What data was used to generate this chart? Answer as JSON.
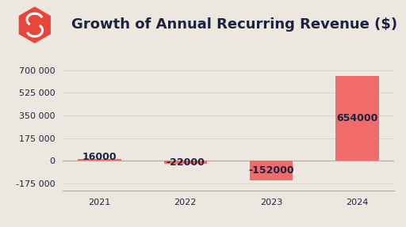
{
  "title": "Growth of Annual Recurring Revenue ($)",
  "categories": [
    "2021",
    "2022",
    "2023",
    "2024"
  ],
  "values": [
    16000,
    -22000,
    -152000,
    654000
  ],
  "bar_color": "#F26B6B",
  "background_color": "#EDE8DF",
  "title_color": "#1C2340",
  "text_color": "#1C2340",
  "axis_color": "#aaaaaa",
  "grid_color": "#d8d0c5",
  "yticks": [
    -175000,
    0,
    175000,
    350000,
    525000,
    700000
  ],
  "ytick_labels": [
    "-175 000",
    "0",
    "175 000",
    "350 000",
    "525 000",
    "700 000"
  ],
  "ylim": [
    -230000,
    750000
  ],
  "title_fontsize": 13,
  "tick_fontsize": 8,
  "bar_label_fontsize": 9,
  "bar_width": 0.5,
  "logo_color": "#E8453C"
}
